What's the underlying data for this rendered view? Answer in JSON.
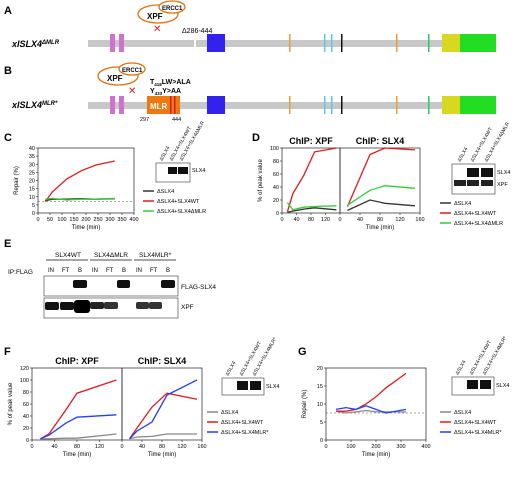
{
  "panels": {
    "A": {
      "letter": "A",
      "construct": "xlSLX4",
      "construct_sup": "ΔMLR",
      "xpf": "XPF",
      "ercc1": "ERCC1",
      "deletion": "Δ286-444"
    },
    "B": {
      "letter": "B",
      "construct": "xlSLX4",
      "construct_sup": "MLR*",
      "xpf": "XPF",
      "ercc1": "ERCC1",
      "mlr": "MLR",
      "mut1": "T",
      "mut1_sub": "418",
      "mut1_tail": "LW>ALA",
      "mut2": "Y",
      "mut2_sub": "433",
      "mut2_tail": "Y>AA",
      "pos_start": "297",
      "pos_end": "444"
    },
    "C": {
      "letter": "C"
    },
    "D": {
      "letter": "D"
    },
    "E": {
      "letter": "E",
      "ip": "IP:FLAG",
      "groups": [
        "SLX4WT",
        "SLX4ΔMLR",
        "SLX4MLR*"
      ],
      "lanes": [
        "IN",
        "FT",
        "B",
        "IN",
        "FT",
        "B",
        "IN",
        "FT",
        "B"
      ],
      "band1": "FLAG-SLX4",
      "band2": "XPF"
    },
    "F": {
      "letter": "F"
    },
    "G": {
      "letter": "G"
    }
  },
  "western": {
    "slx4": "SLX4",
    "xpf": "XPF",
    "lanes_C": [
      "ΔSLX4",
      "ΔSLX4+SLX4WT",
      "ΔSLX4+SLX4ΔMLR"
    ],
    "lanes_F": [
      "ΔSLX4",
      "ΔSLX4+SLX4WT",
      "ΔSLX4+SLX4MLR*"
    ]
  },
  "legend": {
    "slx4": "ΔSLX4",
    "wt": "ΔSLX4+SLX4WT",
    "dmlr": "ΔSLX4+SLX4ΔMLR",
    "mlr_star": "ΔSLX4+SLX4MLR*"
  },
  "colors": {
    "slx4": "#333333",
    "wt": "#e31a1c",
    "dmlr": "#33cc33",
    "mlr_star": "#1f3fff",
    "grey": "#888888"
  },
  "chart_data": [
    {
      "id": "C",
      "type": "line",
      "title": "",
      "xlabel": "Time (min)",
      "ylabel": "Repair (%)",
      "xlim": [
        0,
        400
      ],
      "ylim": [
        0,
        40
      ],
      "xticks": [
        0,
        50,
        100,
        150,
        200,
        250,
        300,
        350,
        400
      ],
      "yticks": [
        0,
        5,
        10,
        15,
        20,
        25,
        30,
        35,
        40
      ],
      "baseline": 7,
      "series": [
        {
          "name": "ΔSLX4",
          "color": "#333333",
          "x": [
            30,
            60,
            120,
            180,
            240,
            320
          ],
          "y": [
            7.5,
            8.5,
            8.5,
            8.8,
            8.5,
            8.8
          ]
        },
        {
          "name": "ΔSLX4+SLX4WT",
          "color": "#e31a1c",
          "x": [
            30,
            60,
            120,
            180,
            240,
            320
          ],
          "y": [
            7,
            13,
            21,
            26,
            29.5,
            32
          ]
        },
        {
          "name": "ΔSLX4+SLX4ΔMLR",
          "color": "#33cc33",
          "x": [
            30,
            60,
            120,
            180,
            240,
            320
          ],
          "y": [
            8.5,
            9,
            8,
            8.5,
            8.5,
            9
          ]
        }
      ]
    },
    {
      "id": "D1",
      "type": "line",
      "title": "ChIP: XPF",
      "xlabel": "",
      "ylabel": "% of peak value",
      "xlim": [
        0,
        160
      ],
      "ylim": [
        0,
        100
      ],
      "xticks": [
        0,
        40,
        80,
        120
      ],
      "yticks": [
        0,
        20,
        40,
        60,
        80,
        100
      ],
      "series": [
        {
          "name": "ΔSLX4",
          "color": "#333333",
          "x": [
            15,
            30,
            60,
            90,
            150
          ],
          "y": [
            1,
            3,
            6,
            8,
            5
          ]
        },
        {
          "name": "ΔSLX4+SLX4WT",
          "color": "#e31a1c",
          "x": [
            15,
            30,
            60,
            90,
            150
          ],
          "y": [
            2,
            30,
            58,
            94,
            100
          ]
        },
        {
          "name": "ΔSLX4+SLX4ΔMLR",
          "color": "#33cc33",
          "x": [
            15,
            30,
            60,
            90,
            150
          ],
          "y": [
            16,
            5,
            9,
            10,
            11
          ]
        }
      ]
    },
    {
      "id": "D2",
      "type": "line",
      "title": "ChIP: SLX4",
      "xlabel": "Time (min)",
      "ylabel": "",
      "xlim": [
        0,
        160
      ],
      "ylim": [
        0,
        100
      ],
      "xticks": [
        0,
        40,
        80,
        120,
        160
      ],
      "yticks": [],
      "series": [
        {
          "name": "ΔSLX4",
          "color": "#333333",
          "x": [
            15,
            60,
            90,
            150
          ],
          "y": [
            4,
            20,
            15,
            11
          ]
        },
        {
          "name": "ΔSLX4+SLX4WT",
          "color": "#e31a1c",
          "x": [
            15,
            60,
            90,
            150
          ],
          "y": [
            10,
            90,
            100,
            97
          ]
        },
        {
          "name": "ΔSLX4+SLX4ΔMLR",
          "color": "#33cc33",
          "x": [
            15,
            60,
            90,
            150
          ],
          "y": [
            12,
            35,
            42,
            38
          ]
        }
      ]
    },
    {
      "id": "F1",
      "type": "line",
      "title": "ChIP: XPF",
      "xlabel": "Time (min)",
      "ylabel": "% of peak value",
      "xlim": [
        0,
        160
      ],
      "ylim": [
        0,
        120
      ],
      "xticks": [
        0,
        40,
        80,
        120
      ],
      "yticks": [
        0,
        20,
        40,
        60,
        80,
        100,
        120
      ],
      "series": [
        {
          "name": "ΔSLX4",
          "color": "#888888",
          "x": [
            15,
            30,
            60,
            80,
            150
          ],
          "y": [
            2,
            2,
            3,
            3,
            10
          ]
        },
        {
          "name": "ΔSLX4+SLX4WT",
          "color": "#e31a1c",
          "x": [
            15,
            30,
            60,
            80,
            150
          ],
          "y": [
            2,
            10,
            50,
            78,
            100
          ]
        },
        {
          "name": "ΔSLX4+SLX4MLR*",
          "color": "#1f3fff",
          "x": [
            15,
            30,
            60,
            80,
            150
          ],
          "y": [
            2,
            8,
            28,
            38,
            42
          ]
        }
      ]
    },
    {
      "id": "F2",
      "type": "line",
      "title": "ChIP: SLX4",
      "xlabel": "Time (min)",
      "ylabel": "",
      "xlim": [
        0,
        160
      ],
      "ylim": [
        0,
        120
      ],
      "xticks": [
        0,
        40,
        80,
        120,
        160
      ],
      "yticks": [],
      "series": [
        {
          "name": "ΔSLX4",
          "color": "#888888",
          "x": [
            15,
            30,
            60,
            90,
            150
          ],
          "y": [
            2,
            5,
            6,
            10,
            10
          ]
        },
        {
          "name": "ΔSLX4+SLX4WT",
          "color": "#e31a1c",
          "x": [
            15,
            30,
            60,
            90,
            150
          ],
          "y": [
            2,
            20,
            55,
            78,
            68
          ]
        },
        {
          "name": "ΔSLX4+SLX4MLR*",
          "color": "#1f3fff",
          "x": [
            15,
            30,
            60,
            90,
            150
          ],
          "y": [
            2,
            15,
            30,
            75,
            100
          ]
        }
      ]
    },
    {
      "id": "G",
      "type": "line",
      "title": "",
      "xlabel": "Time (min)",
      "ylabel": "Repair (%)",
      "xlim": [
        0,
        400
      ],
      "ylim": [
        0,
        20
      ],
      "xticks": [
        0,
        100,
        200,
        300,
        400
      ],
      "yticks": [
        0,
        5,
        10,
        15,
        20
      ],
      "baseline": 7.5,
      "series": [
        {
          "name": "ΔSLX4",
          "color": "#888888",
          "x": [
            40,
            80,
            120,
            160,
            200,
            320
          ],
          "y": [
            8,
            7.5,
            7.8,
            8.2,
            7.8,
            7.8
          ]
        },
        {
          "name": "ΔSLX4+SLX4WT",
          "color": "#e31a1c",
          "x": [
            40,
            80,
            120,
            160,
            200,
            240,
            320
          ],
          "y": [
            8,
            8,
            8.5,
            10,
            12,
            14.5,
            18.5
          ]
        },
        {
          "name": "ΔSLX4+SLX4MLR*",
          "color": "#1f3fff",
          "x": [
            40,
            80,
            120,
            160,
            200,
            240,
            320
          ],
          "y": [
            8.5,
            9,
            8.5,
            9.5,
            8.5,
            7.5,
            8.5
          ]
        }
      ]
    }
  ]
}
